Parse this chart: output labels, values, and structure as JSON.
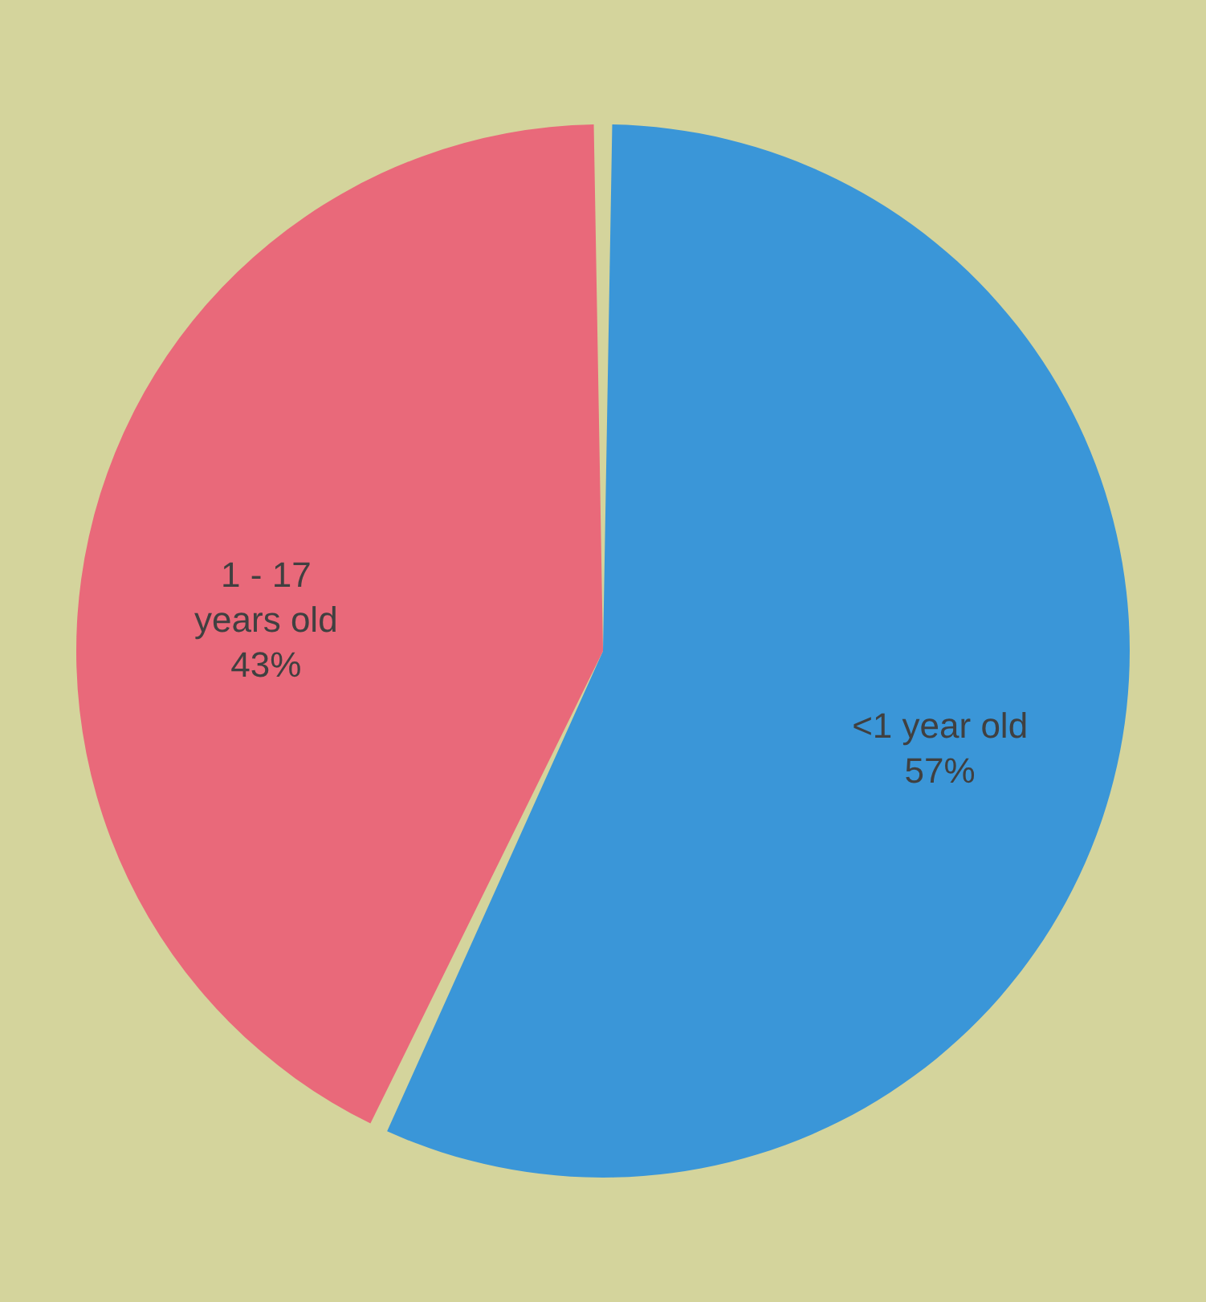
{
  "chart_data": {
    "type": "pie",
    "categories": [
      "<1 year old",
      "1 - 17 years old"
    ],
    "values": [
      57,
      43
    ],
    "colors": [
      "#3a96d8",
      "#e9697a"
    ],
    "value_labels": [
      "57%",
      "43%"
    ]
  }
}
